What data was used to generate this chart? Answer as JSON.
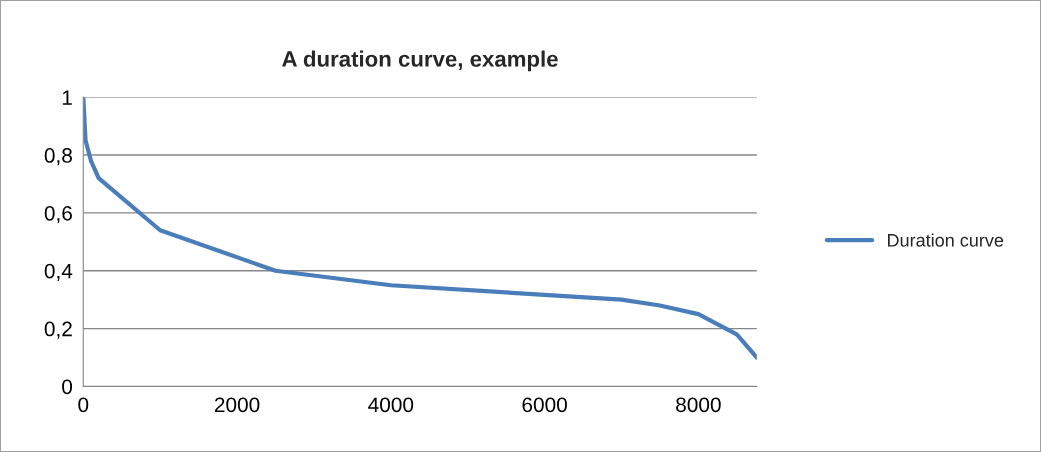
{
  "chart_data": {
    "type": "line",
    "title": "A duration curve, example",
    "x": [
      0,
      30,
      100,
      200,
      1000,
      2500,
      4000,
      7000,
      7500,
      8000,
      8500,
      8760
    ],
    "series": [
      {
        "name": "Duration curve",
        "color": "#4a7ebb",
        "values": [
          1,
          0.85,
          0.78,
          0.72,
          0.54,
          0.4,
          0.35,
          0.3,
          0.28,
          0.25,
          0.18,
          0.1
        ]
      }
    ],
    "xlim": [
      0,
      8760
    ],
    "xticks": [
      0,
      2000,
      4000,
      6000,
      8000
    ],
    "ylim": [
      0,
      1
    ],
    "yticks": [
      0,
      {
        "value": 0.2,
        "label": "0,2"
      },
      {
        "value": 0.4,
        "label": "0,4"
      },
      {
        "value": 0.6,
        "label": "0,6"
      },
      {
        "value": 0.8,
        "label": "0,8"
      },
      1
    ],
    "grid": "y",
    "legend": "right",
    "marker": "none",
    "line_style": "solid"
  }
}
